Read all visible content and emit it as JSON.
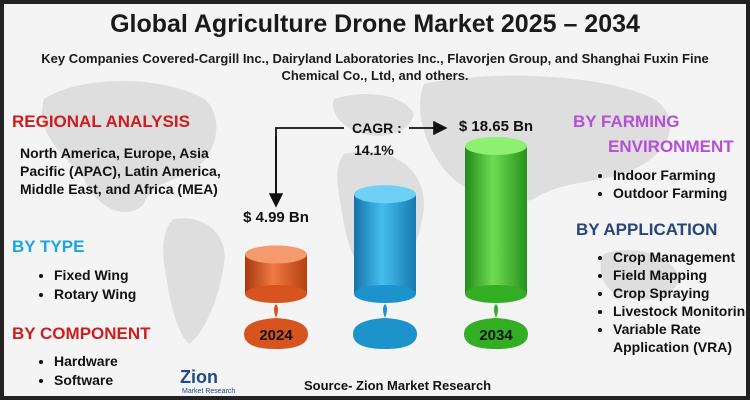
{
  "title": "Global Agriculture Drone Market 2025 – 2034",
  "subtitle": "Key Companies Covered-Cargill Inc., Dairyland Laboratories Inc., Flavorjen Group, and Shanghai Fuxin Fine Chemical Co., Ltd, and others.",
  "regional": {
    "heading": "REGIONAL ANALYSIS",
    "text": "North America, Europe, Asia Pacific (APAC), Latin America, Middle East, and Africa (MEA)"
  },
  "by_type": {
    "heading": "BY TYPE",
    "items": [
      "Fixed Wing",
      "Rotary Wing"
    ]
  },
  "by_component": {
    "heading": "BY COMPONENT",
    "items": [
      "Hardware",
      "Software"
    ]
  },
  "by_farming": {
    "heading_line1": "BY FARMING",
    "heading_line2": "ENVIRONMENT",
    "items": [
      "Indoor Farming",
      "Outdoor Farming"
    ]
  },
  "by_application": {
    "heading": "BY APPLICATION",
    "items": [
      "Crop Management",
      "Field Mapping",
      "Crop Spraying",
      "Livestock Monitoring",
      "Variable Rate Application (VRA)"
    ]
  },
  "source": "Source- Zion Market Research",
  "logo": {
    "word": "Zion",
    "sub": "Market Research"
  },
  "colors": {
    "red": "#d01c1c",
    "cyan": "#1aa6e0",
    "purple": "#b44fd6",
    "navy": "#27457a"
  },
  "chart_data": {
    "type": "bar",
    "categories": [
      "2024",
      "",
      "2034"
    ],
    "values": [
      4.99,
      null,
      18.65
    ],
    "labels": [
      "$ 4.99 Bn",
      "",
      "$ 18.65 Bn"
    ],
    "cagr_label": "CAGR :",
    "cagr_value": "14.1%",
    "colors": [
      "#e8602b",
      "#2aa6dd",
      "#3fbf2f"
    ]
  }
}
